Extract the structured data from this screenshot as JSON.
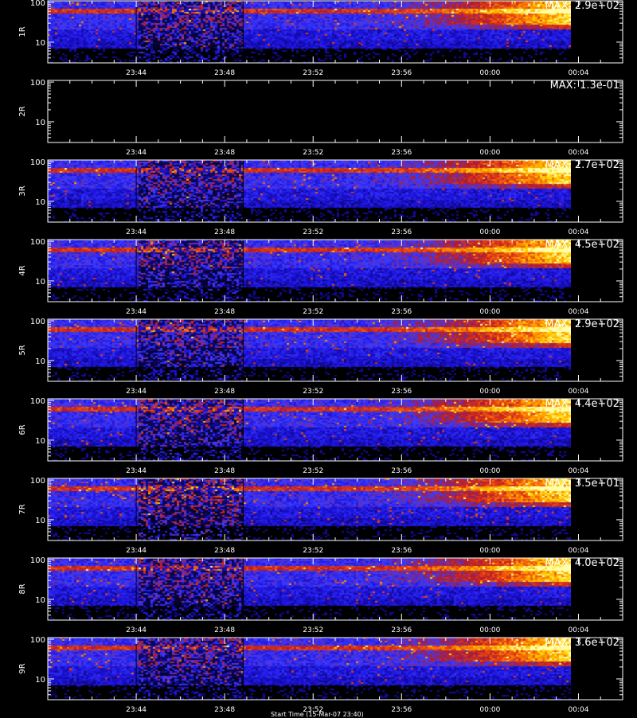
{
  "chart_data": {
    "type": "heatmap",
    "x_axis": {
      "unit": "time",
      "range": [
        "23:40",
        "00:06"
      ],
      "ticks": [
        "23:44",
        "23:48",
        "23:52",
        "23:56",
        "00:00",
        "00:04"
      ],
      "data_end": "00:03:40"
    },
    "y_axis": {
      "scale": "log",
      "range": [
        3,
        110
      ],
      "ticks": [
        "100",
        "10"
      ]
    },
    "grid": false,
    "colormap": [
      "#000000",
      "#1a0fd8",
      "#3b3cff",
      "#b01a2e",
      "#e23c14",
      "#ff8c00",
      "#ffd200",
      "#ffffaa"
    ],
    "gap_interval": [
      "23:44",
      "23:48:50"
    ],
    "panels": [
      {
        "label": "1R",
        "max_label": "MAX: 2.9e+02",
        "max": 290,
        "active": true,
        "noise": 1.0
      },
      {
        "label": "2R",
        "max_label": "MAX: 1.3e-01",
        "max": 0.13,
        "active": false,
        "noise": 0.0
      },
      {
        "label": "3R",
        "max_label": "MAX: 2.7e+02",
        "max": 270,
        "active": true,
        "noise": 0.9
      },
      {
        "label": "4R",
        "max_label": "MAX: 4.5e+02",
        "max": 450,
        "active": true,
        "noise": 0.85
      },
      {
        "label": "5R",
        "max_label": "MAX: 2.9e+02",
        "max": 290,
        "active": true,
        "noise": 0.85
      },
      {
        "label": "6R",
        "max_label": "MAX: 4.4e+02",
        "max": 440,
        "active": true,
        "noise": 1.0
      },
      {
        "label": "7R",
        "max_label": "MAX: 3.5e+01",
        "max": 35,
        "active": true,
        "noise": 1.4
      },
      {
        "label": "8R",
        "max_label": "MAX: 4.0e+02",
        "max": 400,
        "active": true,
        "noise": 0.95
      },
      {
        "label": "9R",
        "max_label": "MAX: 3.6e+02",
        "max": 360,
        "active": true,
        "noise": 0.9
      }
    ],
    "caption": "Start Time (15-Mar-07 23:40)"
  }
}
